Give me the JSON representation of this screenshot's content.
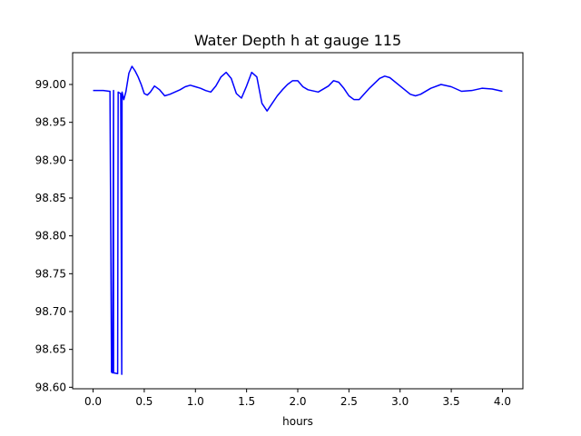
{
  "chart_data": {
    "type": "line",
    "title": "Water Depth h at gauge 115",
    "xlabel": "hours",
    "ylabel": "",
    "xlim": [
      -0.2,
      4.2
    ],
    "ylim": [
      98.598,
      99.042
    ],
    "xticks": [
      0.0,
      0.5,
      1.0,
      1.5,
      2.0,
      2.5,
      3.0,
      3.5,
      4.0
    ],
    "xtick_labels": [
      "0.0",
      "0.5",
      "1.0",
      "1.5",
      "2.0",
      "2.5",
      "3.0",
      "3.5",
      "4.0"
    ],
    "yticks": [
      98.6,
      98.65,
      98.7,
      98.75,
      98.8,
      98.85,
      98.9,
      98.95,
      99.0
    ],
    "ytick_labels": [
      "98.60",
      "98.65",
      "98.70",
      "98.75",
      "98.80",
      "98.85",
      "98.90",
      "98.95",
      "99.00"
    ],
    "grid": false,
    "legend": "none",
    "series": [
      {
        "color": "#0000ff",
        "x": [
          0.0,
          0.1,
          0.16,
          0.165,
          0.18,
          0.19,
          0.2,
          0.2,
          0.24,
          0.245,
          0.255,
          0.27,
          0.28,
          0.283,
          0.3,
          0.32,
          0.35,
          0.38,
          0.41,
          0.44,
          0.47,
          0.5,
          0.53,
          0.56,
          0.6,
          0.65,
          0.7,
          0.75,
          0.8,
          0.85,
          0.9,
          0.95,
          1.0,
          1.05,
          1.1,
          1.15,
          1.2,
          1.25,
          1.3,
          1.35,
          1.4,
          1.45,
          1.5,
          1.55,
          1.6,
          1.65,
          1.7,
          1.75,
          1.8,
          1.85,
          1.9,
          1.95,
          2.0,
          2.05,
          2.1,
          2.2,
          2.3,
          2.35,
          2.4,
          2.45,
          2.5,
          2.55,
          2.6,
          2.7,
          2.8,
          2.85,
          2.9,
          3.0,
          3.1,
          3.15,
          3.2,
          3.3,
          3.4,
          3.5,
          3.6,
          3.7,
          3.8,
          3.9,
          4.0
        ],
        "y": [
          98.992,
          98.992,
          98.991,
          98.991,
          98.62,
          98.619,
          98.992,
          98.619,
          98.618,
          98.99,
          98.989,
          98.988,
          98.617,
          98.99,
          98.98,
          98.99,
          99.015,
          99.024,
          99.018,
          99.01,
          99.0,
          98.988,
          98.986,
          98.99,
          98.998,
          98.993,
          98.985,
          98.987,
          98.99,
          98.993,
          98.997,
          98.999,
          98.997,
          98.995,
          98.992,
          98.99,
          98.998,
          99.01,
          99.016,
          99.008,
          98.988,
          98.982,
          98.998,
          99.016,
          99.01,
          98.975,
          98.965,
          98.975,
          98.985,
          98.993,
          99.0,
          99.005,
          99.005,
          98.997,
          98.993,
          98.99,
          98.998,
          99.005,
          99.003,
          98.995,
          98.985,
          98.98,
          98.98,
          98.995,
          99.008,
          99.011,
          99.009,
          98.998,
          98.987,
          98.985,
          98.987,
          98.995,
          99.0,
          98.997,
          98.991,
          98.992,
          98.995,
          98.994,
          98.991
        ]
      }
    ]
  }
}
